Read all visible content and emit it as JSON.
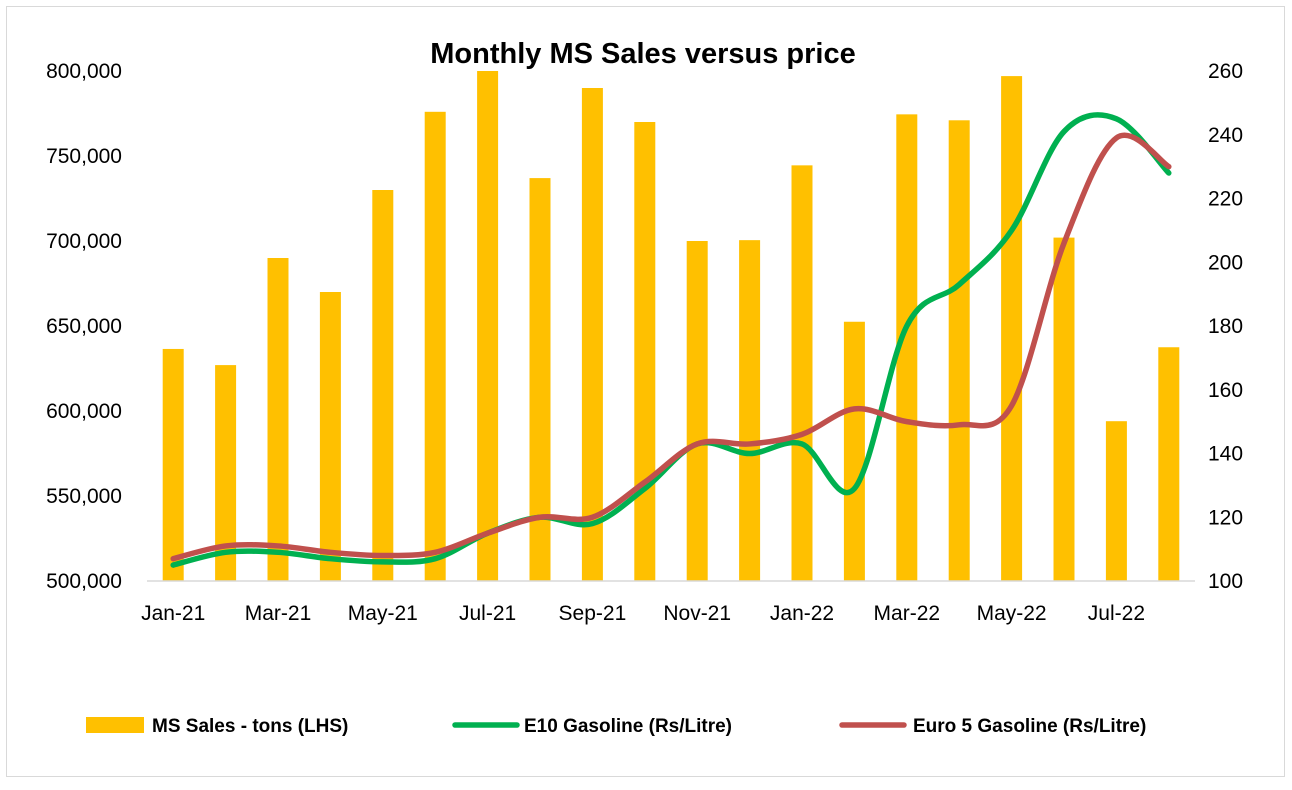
{
  "chart_data": {
    "type": "bar+line",
    "title": "Monthly MS Sales versus price",
    "categories": [
      "Jan-21",
      "Feb-21",
      "Mar-21",
      "Apr-21",
      "May-21",
      "Jun-21",
      "Jul-21",
      "Aug-21",
      "Sep-21",
      "Oct-21",
      "Nov-21",
      "Dec-21",
      "Jan-22",
      "Feb-22",
      "Mar-22",
      "Apr-22",
      "May-22",
      "Jun-22",
      "Jul-22",
      "Aug-22"
    ],
    "x_tick_labels": [
      "Jan-21",
      "Mar-21",
      "May-21",
      "Jul-21",
      "Sep-21",
      "Nov-21",
      "Jan-22",
      "Mar-22",
      "May-22",
      "Jul-22"
    ],
    "y_left": {
      "lim": [
        500000,
        800000
      ],
      "ticks": [
        "500,000",
        "550,000",
        "600,000",
        "650,000",
        "700,000",
        "750,000",
        "800,000"
      ]
    },
    "y_right": {
      "lim": [
        100,
        260
      ],
      "ticks": [
        "100",
        "120",
        "140",
        "160",
        "180",
        "200",
        "220",
        "240",
        "260"
      ]
    },
    "series": [
      {
        "name": "MS Sales - tons (LHS)",
        "axis": "left",
        "kind": "bar",
        "color": "#FFC000",
        "values": [
          636500,
          627000,
          690000,
          670000,
          730000,
          776000,
          800000,
          737000,
          790000,
          770000,
          700000,
          700500,
          744500,
          652500,
          774500,
          771000,
          797000,
          702000,
          594000,
          637500
        ]
      },
      {
        "name": "E10 Gasoline (Rs/Litre)",
        "axis": "right",
        "kind": "line",
        "color": "#00B050",
        "values": [
          105,
          109,
          109,
          107,
          106,
          107,
          115,
          120,
          118,
          129,
          143,
          140,
          143,
          129,
          180,
          193,
          210,
          241,
          245,
          228
        ]
      },
      {
        "name": "Euro 5 Gasoline (Rs/Litre)",
        "axis": "right",
        "kind": "line",
        "color": "#C0504D",
        "values": [
          107,
          111,
          111,
          109,
          108,
          109,
          115,
          120,
          120,
          131,
          143,
          143,
          146,
          154,
          150,
          149,
          155,
          206,
          239,
          230
        ]
      }
    ],
    "legend_position": "bottom",
    "grid": false
  }
}
